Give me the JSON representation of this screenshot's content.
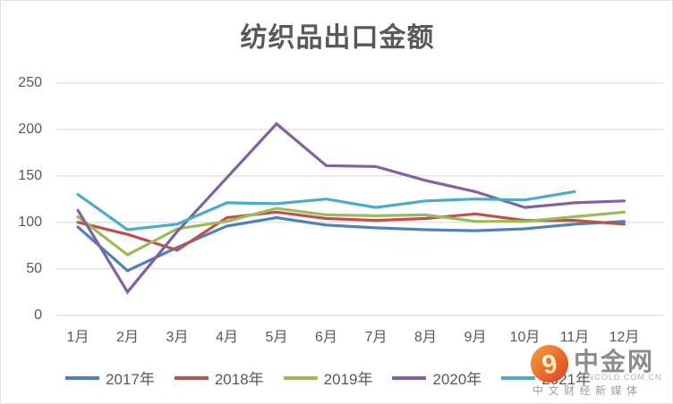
{
  "chart_data": {
    "type": "line",
    "title": "纺织品出口金额",
    "categories": [
      "1月",
      "2月",
      "3月",
      "4月",
      "5月",
      "6月",
      "7月",
      "8月",
      "9月",
      "10月",
      "11月",
      "12月"
    ],
    "y_ticks": [
      0,
      50,
      100,
      150,
      200,
      250
    ],
    "ylim": [
      0,
      250
    ],
    "grid": true,
    "legend_position": "bottom",
    "series": [
      {
        "name": "2017年",
        "color": "#4F81BD",
        "values": [
          95,
          48,
          73,
          96,
          105,
          97,
          94,
          92,
          91,
          93,
          98,
          101
        ]
      },
      {
        "name": "2018年",
        "color": "#C0504D",
        "values": [
          100,
          87,
          70,
          105,
          111,
          104,
          102,
          104,
          109,
          102,
          102,
          98
        ]
      },
      {
        "name": "2019年",
        "color": "#9BBB59",
        "values": [
          106,
          65,
          93,
          101,
          115,
          108,
          107,
          108,
          101,
          101,
          106,
          111
        ]
      },
      {
        "name": "2020年",
        "color": "#8064A2",
        "values": [
          113,
          25,
          90,
          148,
          206,
          161,
          160,
          145,
          133,
          116,
          121,
          123
        ]
      },
      {
        "name": "2021年",
        "color": "#4BACC6",
        "values": [
          130,
          92,
          98,
          121,
          120,
          125,
          116,
          123,
          125,
          124,
          133,
          null
        ]
      }
    ]
  },
  "colors": {
    "grid": "#D9D9D9",
    "axis_text": "#595959",
    "title_text": "#595959"
  },
  "watermark": {
    "brand": "中金网",
    "site": "CNGOLD.COM.CN",
    "tagline": "中文财经新媒体",
    "logo_color_top": "#F2A33C",
    "logo_color_bottom": "#E23B24"
  }
}
